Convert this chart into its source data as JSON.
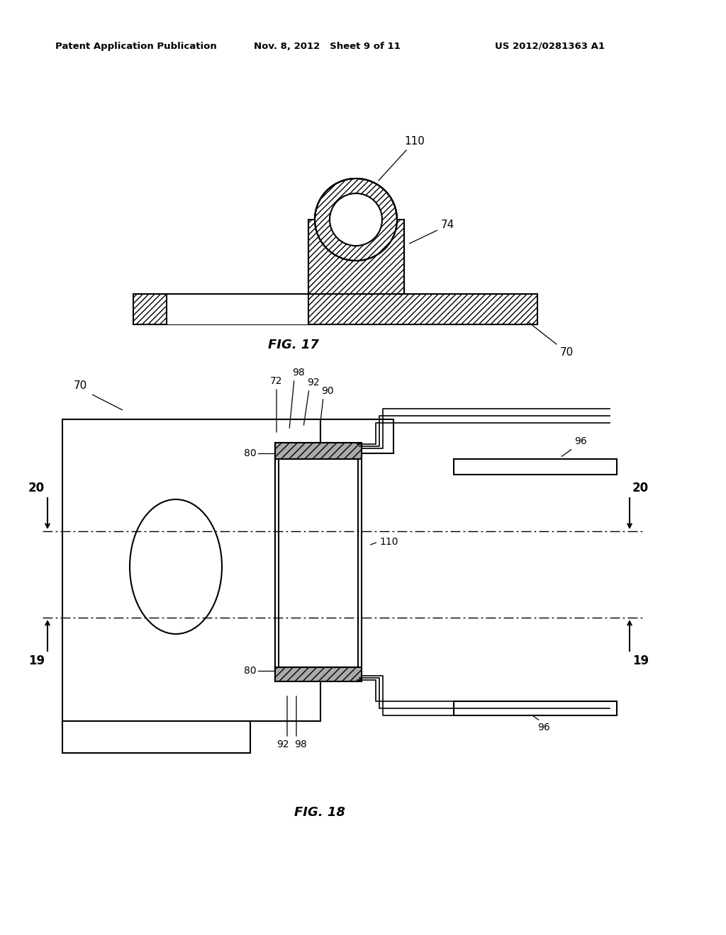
{
  "header_left": "Patent Application Publication",
  "header_mid": "Nov. 8, 2012   Sheet 9 of 11",
  "header_right": "US 2012/0281363 A1",
  "fig17_label": "FIG. 17",
  "fig18_label": "FIG. 18",
  "bg_color": "#ffffff",
  "line_color": "#000000"
}
